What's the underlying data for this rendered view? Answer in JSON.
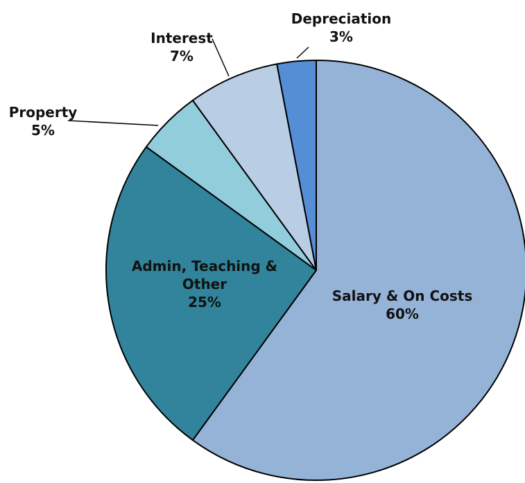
{
  "chart_data": {
    "type": "pie",
    "categories": [
      "Salary & On Costs",
      "Admin, Teaching & Other",
      "Property",
      "Interest",
      "Depreciation"
    ],
    "values": [
      60,
      25,
      5,
      7,
      3
    ],
    "value_labels": [
      "60%",
      "25%",
      "5%",
      "7%",
      "3%"
    ],
    "colors": [
      "#95b3d7",
      "#31849b",
      "#92cddc",
      "#b9cde5",
      "#558ed5"
    ]
  }
}
